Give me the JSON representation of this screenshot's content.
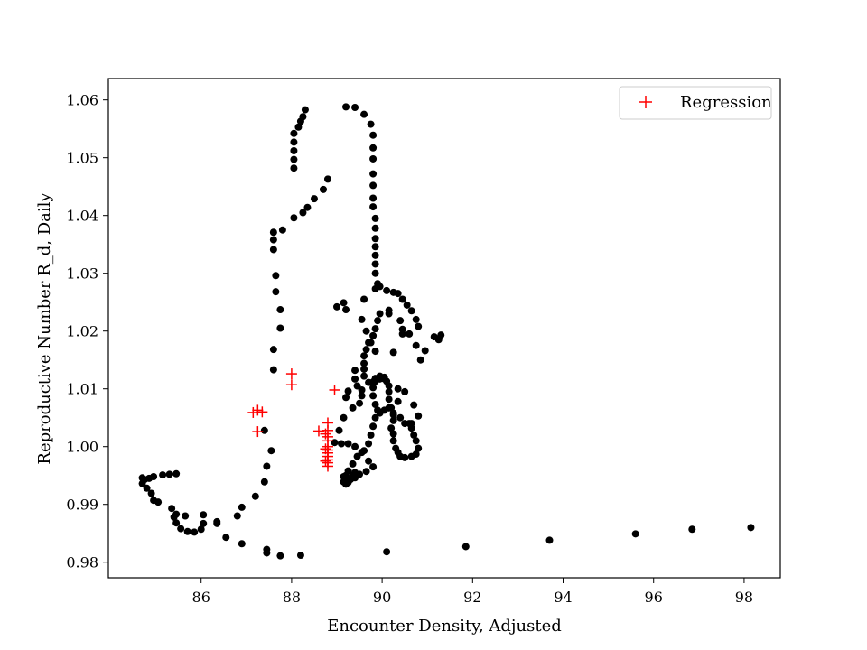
{
  "chart_data": {
    "type": "scatter",
    "title": "",
    "xlabel": "Encounter Density, Adjusted",
    "ylabel": "Reproductive Number R_d, Daily",
    "xlim": [
      83.95,
      98.8
    ],
    "ylim": [
      0.9773,
      1.0637
    ],
    "xticks": [
      86,
      88,
      90,
      92,
      94,
      96,
      98
    ],
    "yticks": [
      0.98,
      0.99,
      1.0,
      1.01,
      1.02,
      1.03,
      1.04,
      1.05,
      1.06
    ],
    "ytick_labels": [
      "0.98",
      "0.99",
      "1.00",
      "1.01",
      "1.02",
      "1.03",
      "1.04",
      "1.05",
      "1.06"
    ],
    "grid": false,
    "legend_position": "upper right",
    "colors": {
      "observed": "#000000",
      "regression": "#ff0000"
    },
    "series": [
      {
        "marker": "dot",
        "color": "#000000",
        "points": [
          [
            98.15,
            0.986
          ],
          [
            96.85,
            0.9857
          ],
          [
            95.6,
            0.9849
          ],
          [
            93.7,
            0.9838
          ],
          [
            91.85,
            0.9827
          ],
          [
            90.1,
            0.9818
          ],
          [
            88.2,
            0.9812
          ],
          [
            87.75,
            0.9811
          ],
          [
            87.45,
            0.9816
          ],
          [
            87.45,
            0.9822
          ],
          [
            86.9,
            0.9832
          ],
          [
            86.55,
            0.9843
          ],
          [
            86.35,
            0.9867
          ],
          [
            86.05,
            0.9867
          ],
          [
            86.0,
            0.9857
          ],
          [
            85.85,
            0.9852
          ],
          [
            85.7,
            0.9853
          ],
          [
            85.55,
            0.9858
          ],
          [
            85.45,
            0.9868
          ],
          [
            85.4,
            0.9878
          ],
          [
            85.65,
            0.988
          ],
          [
            85.45,
            0.9883
          ],
          [
            85.35,
            0.9893
          ],
          [
            85.05,
            0.9904
          ],
          [
            84.95,
            0.9907
          ],
          [
            84.9,
            0.9919
          ],
          [
            84.8,
            0.9928
          ],
          [
            84.7,
            0.9936
          ],
          [
            84.75,
            0.9943
          ],
          [
            84.85,
            0.9945
          ],
          [
            84.7,
            0.9946
          ],
          [
            84.95,
            0.9948
          ],
          [
            85.15,
            0.9951
          ],
          [
            85.3,
            0.9952
          ],
          [
            85.45,
            0.9953
          ],
          [
            86.05,
            0.9882
          ],
          [
            86.35,
            0.987
          ],
          [
            86.8,
            0.988
          ],
          [
            86.9,
            0.9895
          ],
          [
            87.2,
            0.9914
          ],
          [
            87.4,
            0.9939
          ],
          [
            87.45,
            0.9966
          ],
          [
            87.55,
            0.9993
          ],
          [
            87.4,
            1.0028
          ],
          [
            87.6,
            1.0133
          ],
          [
            87.6,
            1.0168
          ],
          [
            87.75,
            1.0205
          ],
          [
            87.75,
            1.0237
          ],
          [
            87.65,
            1.0268
          ],
          [
            87.65,
            1.0296
          ],
          [
            87.6,
            1.0341
          ],
          [
            87.6,
            1.0358
          ],
          [
            87.6,
            1.0371
          ],
          [
            87.8,
            1.0375
          ],
          [
            88.05,
            1.0396
          ],
          [
            88.25,
            1.0405
          ],
          [
            88.35,
            1.0414
          ],
          [
            88.5,
            1.0429
          ],
          [
            88.7,
            1.0445
          ],
          [
            88.8,
            1.0463
          ],
          [
            88.05,
            1.0482
          ],
          [
            88.05,
            1.0497
          ],
          [
            88.05,
            1.0512
          ],
          [
            88.05,
            1.0527
          ],
          [
            88.05,
            1.0542
          ],
          [
            88.15,
            1.0553
          ],
          [
            88.2,
            1.0563
          ],
          [
            88.25,
            1.0571
          ],
          [
            88.3,
            1.0583
          ],
          [
            89.2,
            1.0588
          ],
          [
            89.4,
            1.0587
          ],
          [
            89.6,
            1.0575
          ],
          [
            89.75,
            1.0558
          ],
          [
            89.8,
            1.0539
          ],
          [
            89.8,
            1.0517
          ],
          [
            89.8,
            1.0498
          ],
          [
            89.8,
            1.0472
          ],
          [
            89.8,
            1.0452
          ],
          [
            89.8,
            1.043
          ],
          [
            89.8,
            1.0415
          ],
          [
            89.85,
            1.0395
          ],
          [
            89.85,
            1.0378
          ],
          [
            89.85,
            1.036
          ],
          [
            89.85,
            1.0346
          ],
          [
            89.85,
            1.0331
          ],
          [
            89.85,
            1.0316
          ],
          [
            89.85,
            1.03
          ],
          [
            89.9,
            1.0282
          ],
          [
            89.85,
            1.0273
          ],
          [
            89.95,
            1.0277
          ],
          [
            90.1,
            1.027
          ],
          [
            90.25,
            1.0267
          ],
          [
            90.35,
            1.0265
          ],
          [
            90.45,
            1.0255
          ],
          [
            90.55,
            1.0245
          ],
          [
            90.65,
            1.0235
          ],
          [
            90.75,
            1.022
          ],
          [
            90.8,
            1.0208
          ],
          [
            90.6,
            1.0195
          ],
          [
            90.45,
            1.0203
          ],
          [
            90.4,
            1.0218
          ],
          [
            90.15,
            1.0236
          ],
          [
            89.95,
            1.023
          ],
          [
            89.9,
            1.0218
          ],
          [
            89.85,
            1.0204
          ],
          [
            89.8,
            1.0192
          ],
          [
            89.7,
            1.018
          ],
          [
            89.65,
            1.0168
          ],
          [
            89.6,
            1.0157
          ],
          [
            89.6,
            1.0144
          ],
          [
            89.6,
            1.0134
          ],
          [
            89.6,
            1.0122
          ],
          [
            89.7,
            1.0111
          ],
          [
            89.85,
            1.0113
          ],
          [
            89.95,
            1.0117
          ],
          [
            90.05,
            1.0117
          ],
          [
            90.1,
            1.0113
          ],
          [
            90.15,
            1.0105
          ],
          [
            90.15,
            1.0095
          ],
          [
            90.15,
            1.0082
          ],
          [
            90.2,
            1.0067
          ],
          [
            90.25,
            1.0055
          ],
          [
            90.25,
            1.0045
          ],
          [
            90.2,
            1.0032
          ],
          [
            90.25,
            1.0022
          ],
          [
            90.25,
            1.001
          ],
          [
            90.3,
            0.9997
          ],
          [
            90.35,
            0.999
          ],
          [
            90.4,
            0.9983
          ],
          [
            90.5,
            0.9981
          ],
          [
            90.65,
            0.9983
          ],
          [
            90.75,
            0.9987
          ],
          [
            90.8,
            0.9997
          ],
          [
            90.75,
            1.001
          ],
          [
            90.7,
            1.002
          ],
          [
            90.65,
            1.0032
          ],
          [
            90.6,
            1.004
          ],
          [
            90.5,
            1.004
          ],
          [
            90.4,
            1.005
          ],
          [
            90.25,
            1.0058
          ],
          [
            90.15,
            1.0067
          ],
          [
            90.05,
            1.0063
          ],
          [
            89.95,
            1.0058
          ],
          [
            89.9,
            1.0063
          ],
          [
            89.85,
            1.0073
          ],
          [
            89.8,
            1.0088
          ],
          [
            89.8,
            1.0102
          ],
          [
            89.8,
            1.0112
          ],
          [
            89.85,
            1.0118
          ],
          [
            89.95,
            1.0122
          ],
          [
            90.05,
            1.012
          ],
          [
            89.85,
            1.005
          ],
          [
            89.8,
            1.0035
          ],
          [
            89.75,
            1.002
          ],
          [
            89.7,
            1.0005
          ],
          [
            89.6,
            0.9993
          ],
          [
            89.45,
            0.9983
          ],
          [
            89.35,
            0.997
          ],
          [
            89.25,
            0.9958
          ],
          [
            89.2,
            0.995
          ],
          [
            89.25,
            0.9942
          ],
          [
            89.4,
            0.9946
          ],
          [
            89.5,
            0.9952
          ],
          [
            89.65,
            0.9957
          ],
          [
            89.8,
            0.9965
          ],
          [
            89.7,
            0.9975
          ],
          [
            89.55,
            0.999
          ],
          [
            89.4,
            1.0
          ],
          [
            89.25,
            1.0005
          ],
          [
            89.1,
            1.0005
          ],
          [
            88.95,
            1.0007
          ],
          [
            89.05,
            1.0028
          ],
          [
            89.15,
            1.005
          ],
          [
            89.35,
            1.0067
          ],
          [
            89.5,
            1.0075
          ],
          [
            89.55,
            1.0088
          ],
          [
            89.55,
            1.0098
          ],
          [
            89.45,
            1.0105
          ],
          [
            89.4,
            1.0117
          ],
          [
            89.4,
            1.0132
          ],
          [
            89.25,
            1.0096
          ],
          [
            89.2,
            1.0085
          ],
          [
            89.2,
            0.9935
          ],
          [
            89.25,
            0.9938
          ],
          [
            89.3,
            0.9943
          ],
          [
            89.35,
            0.995
          ],
          [
            89.4,
            0.9955
          ],
          [
            89.15,
            0.9948
          ],
          [
            89.15,
            0.9939
          ],
          [
            90.25,
            1.0163
          ],
          [
            90.15,
            1.023
          ],
          [
            90.35,
            1.01
          ],
          [
            90.5,
            1.0095
          ],
          [
            90.35,
            1.0078
          ],
          [
            89.0,
            1.0242
          ],
          [
            89.15,
            1.0249
          ],
          [
            89.2,
            1.0237
          ],
          [
            89.55,
            1.022
          ],
          [
            89.65,
            1.02
          ],
          [
            89.75,
            1.018
          ],
          [
            89.85,
            1.0165
          ],
          [
            89.6,
            1.0255
          ],
          [
            90.45,
            1.0195
          ],
          [
            90.75,
            1.0175
          ],
          [
            90.85,
            1.015
          ],
          [
            90.95,
            1.0166
          ],
          [
            91.15,
            1.019
          ],
          [
            91.3,
            1.0193
          ],
          [
            91.25,
            1.0185
          ],
          [
            90.8,
            1.0053
          ],
          [
            90.65,
            1.004
          ],
          [
            90.7,
            1.0072
          ]
        ]
      },
      {
        "name": "Regression",
        "marker": "plus",
        "color": "#ff0000",
        "points": [
          [
            87.15,
            1.0059
          ],
          [
            87.25,
            1.0063
          ],
          [
            87.35,
            1.006
          ],
          [
            87.25,
            1.0026
          ],
          [
            88.0,
            1.0126
          ],
          [
            88.0,
            1.0107
          ],
          [
            88.95,
            1.0098
          ],
          [
            88.6,
            1.0027
          ],
          [
            88.8,
            1.0041
          ],
          [
            88.8,
            1.0028
          ],
          [
            88.75,
            1.0022
          ],
          [
            88.8,
            1.0017
          ],
          [
            88.8,
            1.001
          ],
          [
            88.8,
            1.0
          ],
          [
            88.8,
            0.9994
          ],
          [
            88.8,
            0.9989
          ],
          [
            88.8,
            0.9983
          ],
          [
            88.8,
            0.9977
          ],
          [
            88.8,
            0.9972
          ],
          [
            88.8,
            0.9966
          ],
          [
            88.75,
            0.9996
          ],
          [
            88.75,
            0.9975
          ]
        ]
      }
    ]
  }
}
